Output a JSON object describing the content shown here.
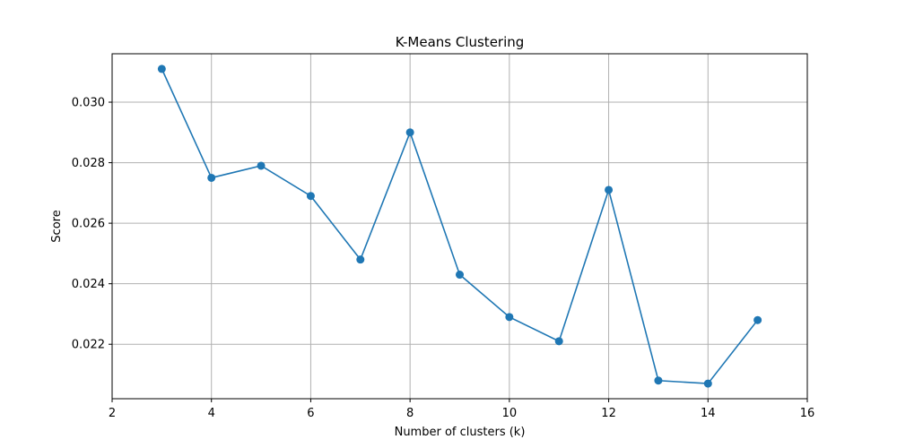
{
  "chart_data": {
    "type": "line",
    "title": "K-Means Clustering",
    "xlabel": "Number of clusters (k)",
    "ylabel": "Score",
    "xlim": [
      2,
      16
    ],
    "ylim": [
      0.0202,
      0.0316
    ],
    "xticks": [
      2,
      4,
      6,
      8,
      10,
      12,
      14,
      16
    ],
    "xtick_labels": [
      "2",
      "4",
      "6",
      "8",
      "10",
      "12",
      "14",
      "16"
    ],
    "yticks": [
      0.022,
      0.024,
      0.026,
      0.028,
      0.03
    ],
    "ytick_labels": [
      "0.022",
      "0.024",
      "0.026",
      "0.028",
      "0.030"
    ],
    "grid": true,
    "series": [
      {
        "color": "#1f77b4",
        "marker": "circle",
        "x": [
          3,
          4,
          5,
          6,
          7,
          8,
          9,
          10,
          11,
          12,
          13,
          14,
          15
        ],
        "y": [
          0.0311,
          0.0275,
          0.0279,
          0.0269,
          0.0248,
          0.029,
          0.0243,
          0.0229,
          0.0221,
          0.0271,
          0.0208,
          0.0207,
          0.0228
        ]
      }
    ]
  }
}
